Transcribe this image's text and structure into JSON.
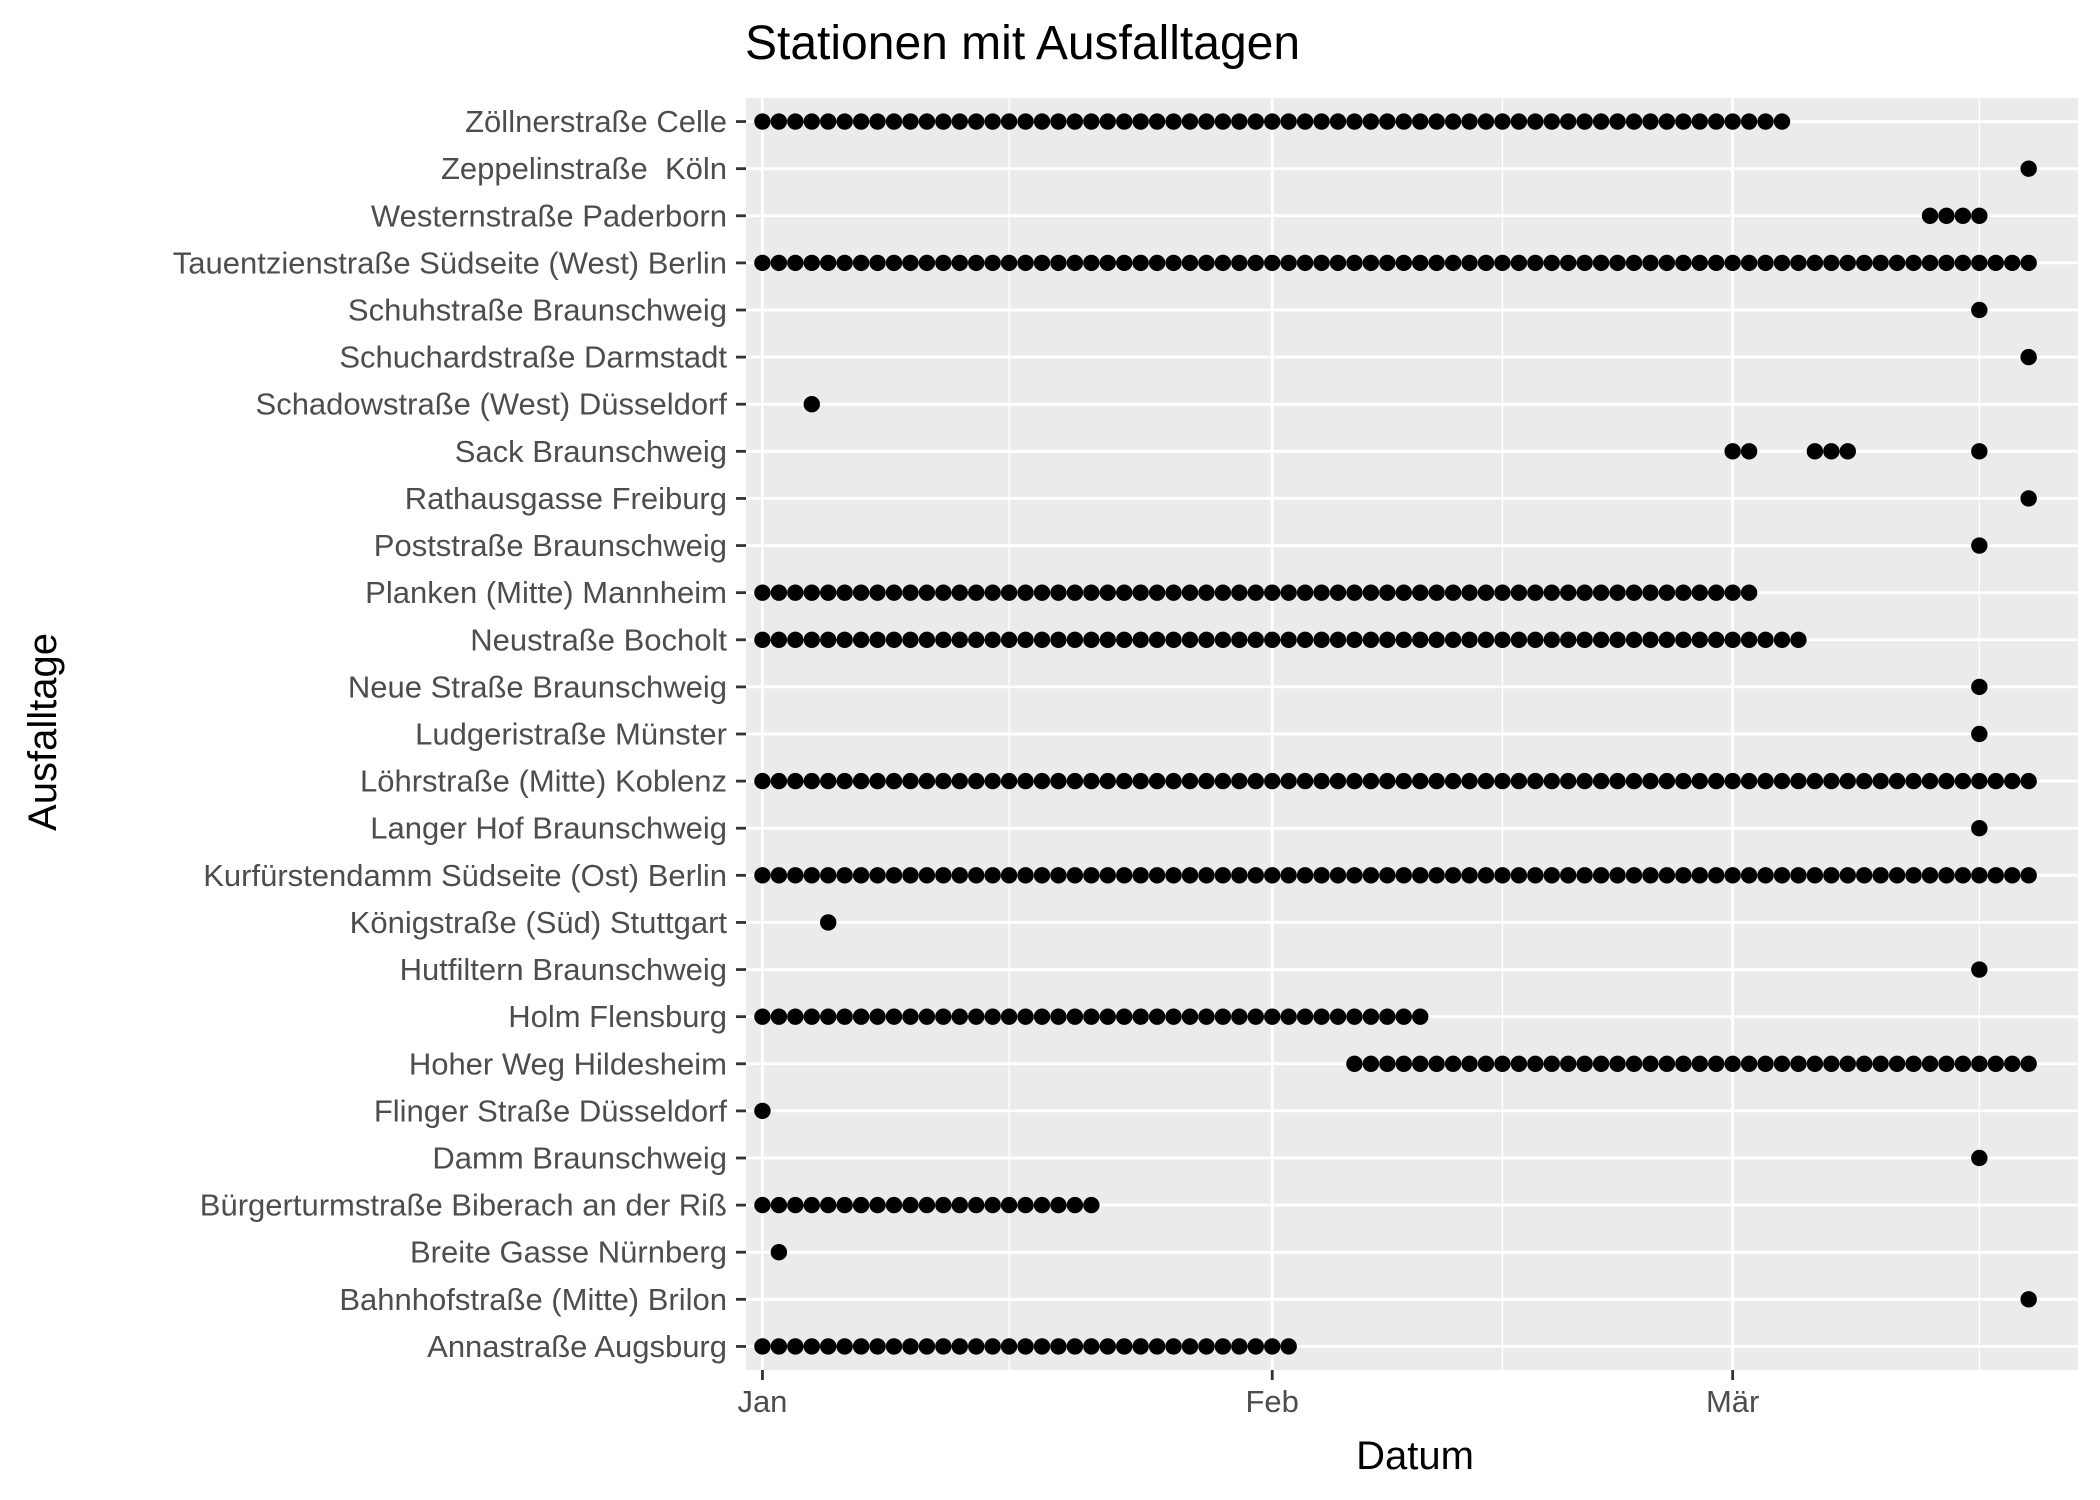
{
  "chart_data": {
    "type": "scatter",
    "title": "Stationen mit Ausfalltagen",
    "xlabel": "Datum",
    "ylabel": "Ausfalltage",
    "x_axis": {
      "scale": "date",
      "range": [
        "2020-12-31",
        "2021-03-22"
      ],
      "ticks": [
        {
          "date": "2021-01-01",
          "label": "Jan"
        },
        {
          "date": "2021-02-01",
          "label": "Feb"
        },
        {
          "date": "2021-03-01",
          "label": "Mär"
        }
      ],
      "minor_ticks": [
        "2021-01-16",
        "2021-02-15",
        "2021-03-16"
      ]
    },
    "grid": true,
    "panel_background": "#ebebeb",
    "point_color": "#000000",
    "series": [
      {
        "station": "Annastraße Augsburg",
        "dates": [
          "2021-01-01..2021-02-02"
        ]
      },
      {
        "station": "Bahnhofstraße (Mitte) Brilon",
        "dates": [
          "2021-03-19"
        ]
      },
      {
        "station": "Breite Gasse Nürnberg",
        "dates": [
          "2021-01-02"
        ]
      },
      {
        "station": "Bürgerturmstraße Biberach an der Riß",
        "dates": [
          "2021-01-01..2021-01-21"
        ]
      },
      {
        "station": "Damm Braunschweig",
        "dates": [
          "2021-03-16"
        ]
      },
      {
        "station": "Flinger Straße Düsseldorf",
        "dates": [
          "2021-01-01"
        ]
      },
      {
        "station": "Hoher Weg Hildesheim",
        "dates": [
          "2021-02-06..2021-03-19"
        ]
      },
      {
        "station": "Holm Flensburg",
        "dates": [
          "2021-01-01..2021-02-10"
        ]
      },
      {
        "station": "Hutfiltern Braunschweig",
        "dates": [
          "2021-03-16"
        ]
      },
      {
        "station": "Königstraße (Süd) Stuttgart",
        "dates": [
          "2021-01-05"
        ]
      },
      {
        "station": "Kurfürstendamm Südseite (Ost) Berlin",
        "dates": [
          "2021-01-01..2021-03-19"
        ]
      },
      {
        "station": "Langer Hof Braunschweig",
        "dates": [
          "2021-03-16"
        ]
      },
      {
        "station": "Löhrstraße (Mitte) Koblenz",
        "dates": [
          "2021-01-01..2021-03-19"
        ]
      },
      {
        "station": "Ludgeristraße Münster",
        "dates": [
          "2021-03-16"
        ]
      },
      {
        "station": "Neue Straße Braunschweig",
        "dates": [
          "2021-03-16"
        ]
      },
      {
        "station": "Neustraße Bocholt",
        "dates": [
          "2021-01-01..2021-03-05"
        ]
      },
      {
        "station": "Planken (Mitte) Mannheim",
        "dates": [
          "2021-01-01..2021-03-02"
        ]
      },
      {
        "station": "Poststraße Braunschweig",
        "dates": [
          "2021-03-16"
        ]
      },
      {
        "station": "Rathausgasse Freiburg",
        "dates": [
          "2021-03-19"
        ]
      },
      {
        "station": "Sack Braunschweig",
        "dates": [
          "2021-03-01",
          "2021-03-02",
          "2021-03-06",
          "2021-03-07",
          "2021-03-08",
          "2021-03-16"
        ]
      },
      {
        "station": "Schadowstraße (West) Düsseldorf",
        "dates": [
          "2021-01-04"
        ]
      },
      {
        "station": "Schuchardstraße Darmstadt",
        "dates": [
          "2021-03-19"
        ]
      },
      {
        "station": "Schuhstraße Braunschweig",
        "dates": [
          "2021-03-16"
        ]
      },
      {
        "station": "Tauentzienstraße Südseite (West) Berlin",
        "dates": [
          "2021-01-01..2021-03-19"
        ]
      },
      {
        "station": "Westernstraße Paderborn",
        "dates": [
          "2021-03-13",
          "2021-03-14",
          "2021-03-15",
          "2021-03-16"
        ]
      },
      {
        "station": "Zeppelinstraße  Köln",
        "dates": [
          "2021-03-19"
        ]
      },
      {
        "station": "Zöllnerstraße Celle",
        "dates": [
          "2021-01-01..2021-03-04"
        ]
      }
    ]
  }
}
